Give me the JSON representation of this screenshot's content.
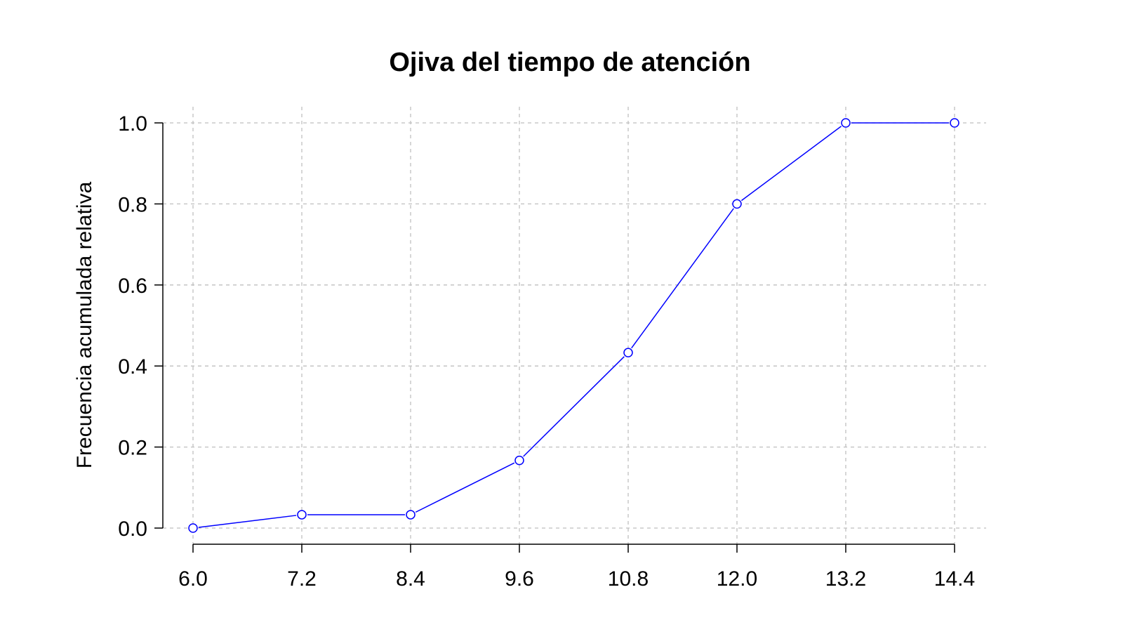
{
  "chart_data": {
    "type": "line",
    "title": "Ojiva del tiempo de atención",
    "xlabel": "",
    "ylabel": "Frecuencia acumulada relativa",
    "x": [
      6.0,
      7.2,
      8.4,
      9.6,
      10.8,
      12.0,
      13.2,
      14.4
    ],
    "x_tick_labels": [
      "6.0",
      "7.2",
      "8.4",
      "9.6",
      "10.8",
      "12.0",
      "13.2",
      "14.4"
    ],
    "y_ticks": [
      0.0,
      0.2,
      0.4,
      0.6,
      0.8,
      1.0
    ],
    "y_tick_labels": [
      "0.0",
      "0.2",
      "0.4",
      "0.6",
      "0.8",
      "1.0"
    ],
    "series": [
      {
        "values": [
          0.0,
          0.033,
          0.033,
          0.167,
          0.433,
          0.8,
          1.0,
          1.0
        ],
        "color": "#0000ff",
        "marker": "open-circle"
      }
    ],
    "xlim": [
      6.0,
      14.4
    ],
    "ylim": [
      0.0,
      1.0
    ],
    "grid": true
  }
}
